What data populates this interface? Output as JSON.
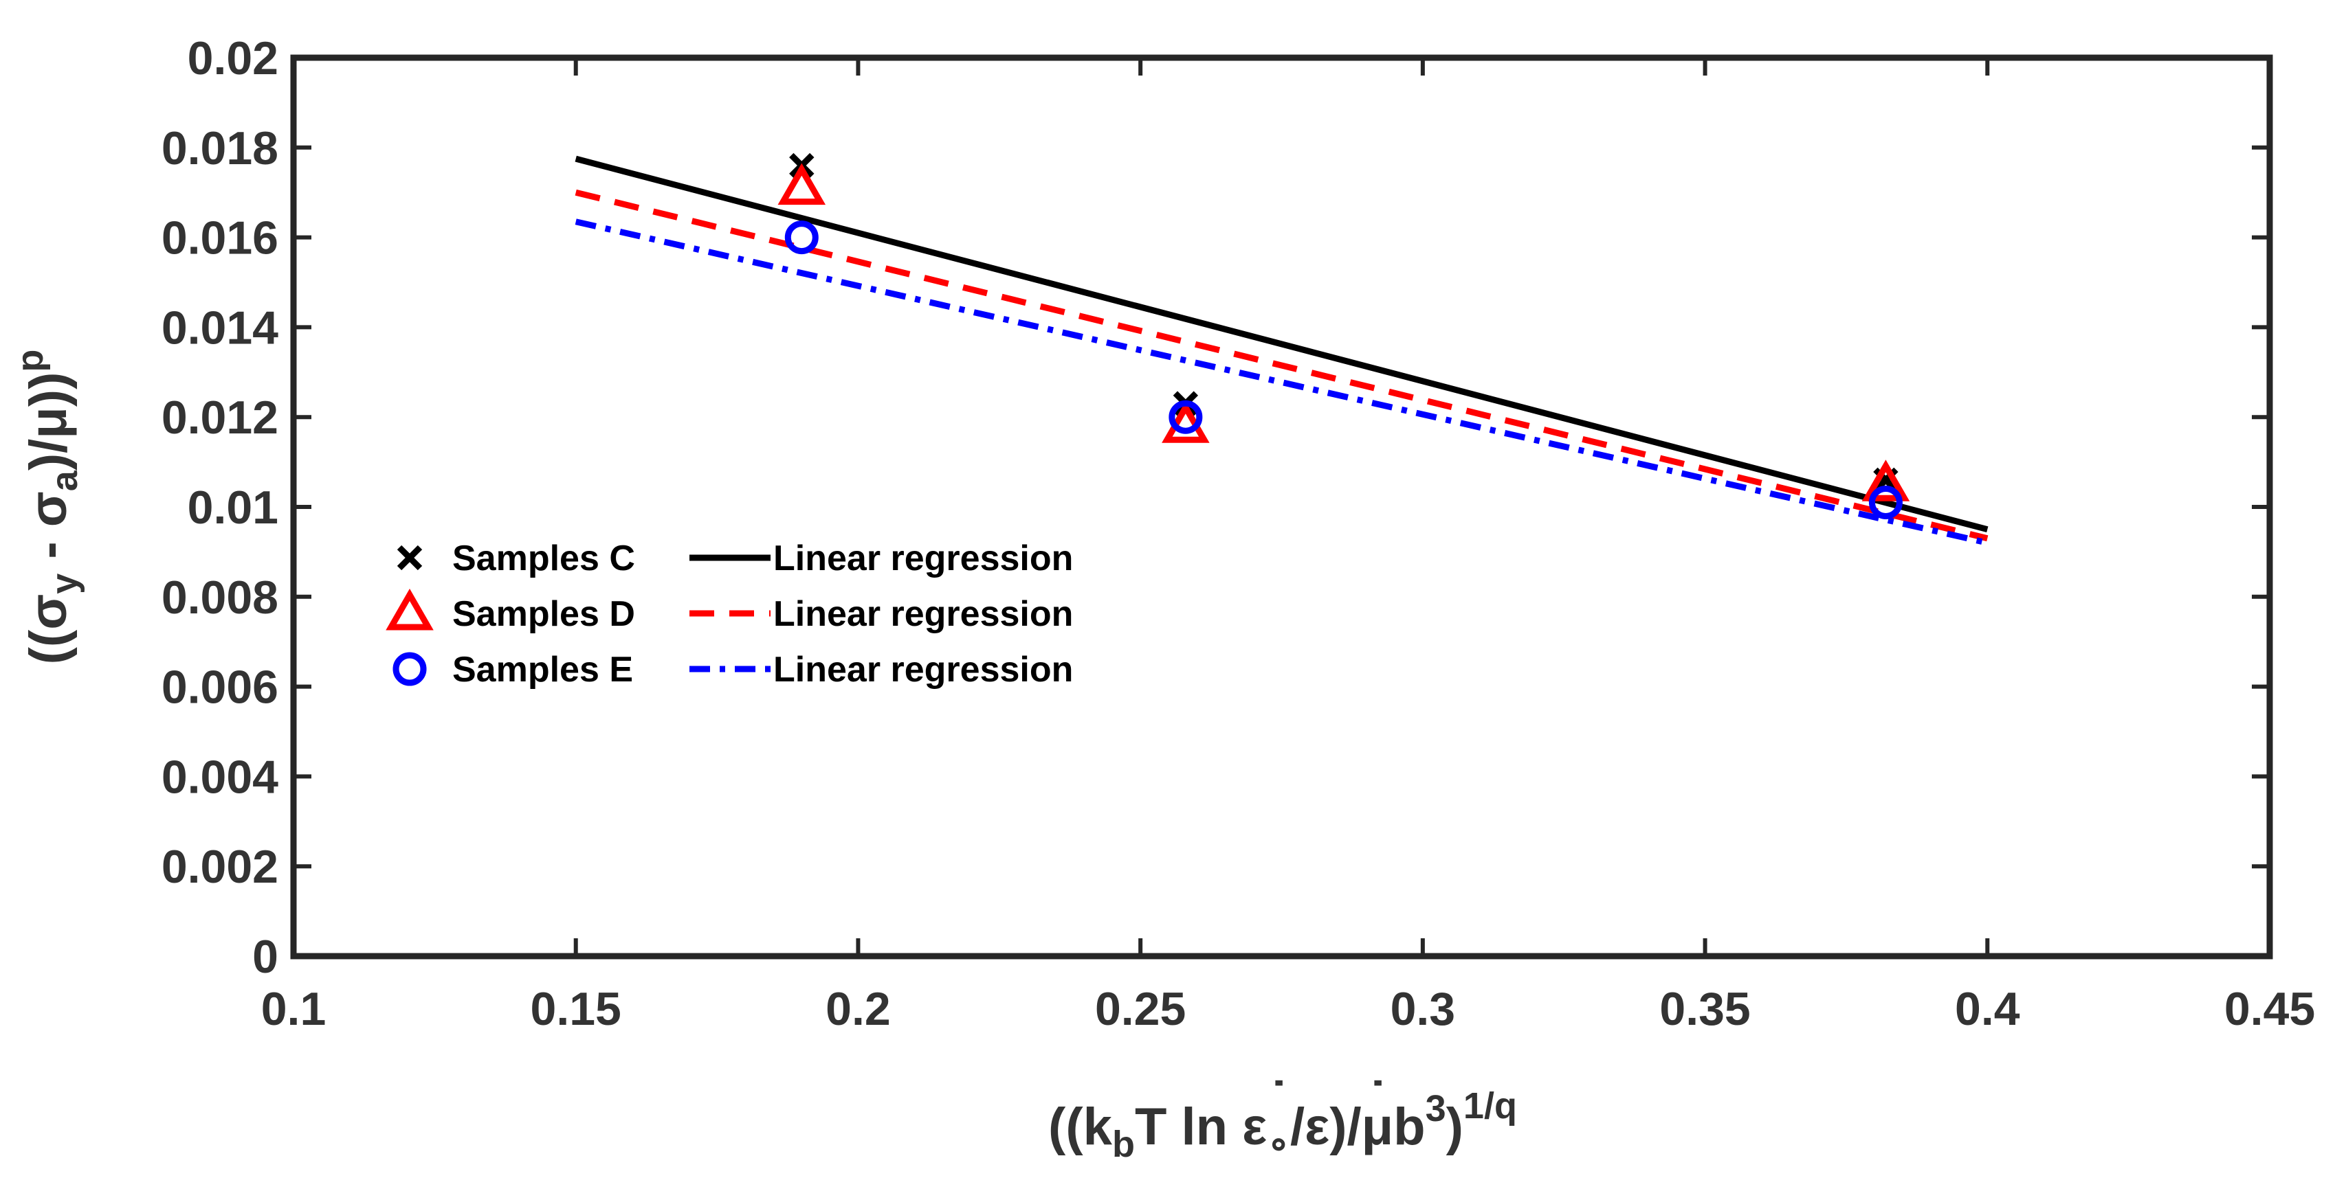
{
  "chart_data": {
    "type": "scatter",
    "title": "",
    "xlabel": {
      "prefix": "((k",
      "sub1": "b",
      "mid": "T ln ε",
      "sub2": "∘",
      "mid2": "/ε",
      "mid3": ")/μb",
      "sup1": "3",
      "end": ")",
      "sup2": "1/q",
      "dot": "˙"
    },
    "ylabel": {
      "prefix": "((σ",
      "sub1": "y",
      "mid": " - σ",
      "sub2": "a",
      "end": ")/μ))",
      "sup": "p"
    },
    "xlim": [
      0.1,
      0.45
    ],
    "ylim": [
      0,
      0.02
    ],
    "xticks": [
      0.1,
      0.15,
      0.2,
      0.25,
      0.3,
      0.35,
      0.4,
      0.45
    ],
    "xtick_labels": [
      "0.1",
      "0.15",
      "0.2",
      "0.25",
      "0.3",
      "0.35",
      "0.4",
      "0.45"
    ],
    "yticks": [
      0,
      0.002,
      0.004,
      0.006,
      0.008,
      0.01,
      0.012,
      0.014,
      0.016,
      0.018,
      0.02
    ],
    "ytick_labels": [
      "0",
      "0.002",
      "0.004",
      "0.006",
      "0.008",
      "0.01",
      "0.012",
      "0.014",
      "0.016",
      "0.018",
      "0.02"
    ],
    "grid": false,
    "legend_position": "middle-left",
    "series": [
      {
        "name": "Samples C",
        "marker": "x",
        "color": "#000000",
        "points": [
          [
            0.19,
            0.0176
          ],
          [
            0.258,
            0.0123
          ],
          [
            0.382,
            0.0106
          ]
        ],
        "fit_name": "Linear regression",
        "fit_style": "solid",
        "fit_line": [
          [
            0.15,
            0.01775
          ],
          [
            0.4,
            0.0095
          ]
        ]
      },
      {
        "name": "Samples D",
        "marker": "triangle",
        "color": "#ff0000",
        "points": [
          [
            0.19,
            0.0171
          ],
          [
            0.258,
            0.0118
          ],
          [
            0.382,
            0.0105
          ]
        ],
        "fit_name": "Linear regression",
        "fit_style": "dashed",
        "fit_line": [
          [
            0.15,
            0.017
          ],
          [
            0.4,
            0.0093
          ]
        ]
      },
      {
        "name": "Samples E",
        "marker": "circle",
        "color": "#0000ff",
        "points": [
          [
            0.19,
            0.016
          ],
          [
            0.258,
            0.012
          ],
          [
            0.382,
            0.0101
          ]
        ],
        "fit_name": "Linear regression",
        "fit_style": "dashdot",
        "fit_line": [
          [
            0.15,
            0.01635
          ],
          [
            0.4,
            0.0092
          ]
        ]
      }
    ]
  }
}
